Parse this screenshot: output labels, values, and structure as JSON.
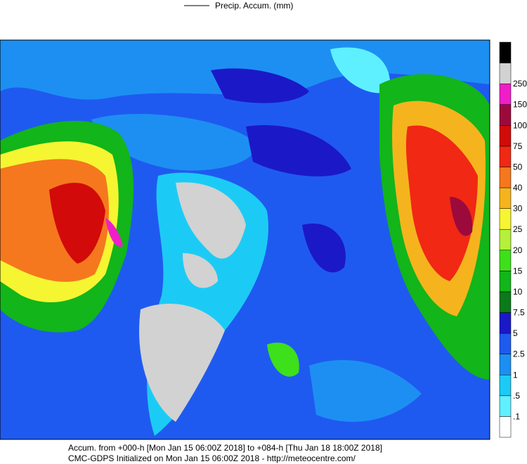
{
  "legend": {
    "label": "Precip. Accum. (mm)"
  },
  "colorbar": {
    "labels": [
      ".1",
      ".5",
      "1",
      "2.5",
      "5",
      "7.5",
      "10",
      "15",
      "20",
      "25",
      "30",
      "40",
      "50",
      "75",
      "100",
      "150",
      "250"
    ],
    "colors": [
      "#ffffff",
      "#5ff0ff",
      "#1ccbf5",
      "#1d8ff2",
      "#1f5af0",
      "#1b18c8",
      "#0a7a1a",
      "#12b51a",
      "#3de01a",
      "#b4f03c",
      "#f5f532",
      "#f5b41e",
      "#f5781e",
      "#f02814",
      "#d20a0a",
      "#9c0a3c",
      "#f01ec8",
      "#d2d2d2",
      "#000000"
    ]
  },
  "footer": {
    "line1": "Accum. from +000-h [Mon Jan 15 06:00Z 2018] to +084-h [Thu Jan 18 18:00Z 2018]",
    "line2": "CMC-GDPS Initialized on Mon Jan 15 06:00Z 2018 - http://meteocentre.com/"
  }
}
